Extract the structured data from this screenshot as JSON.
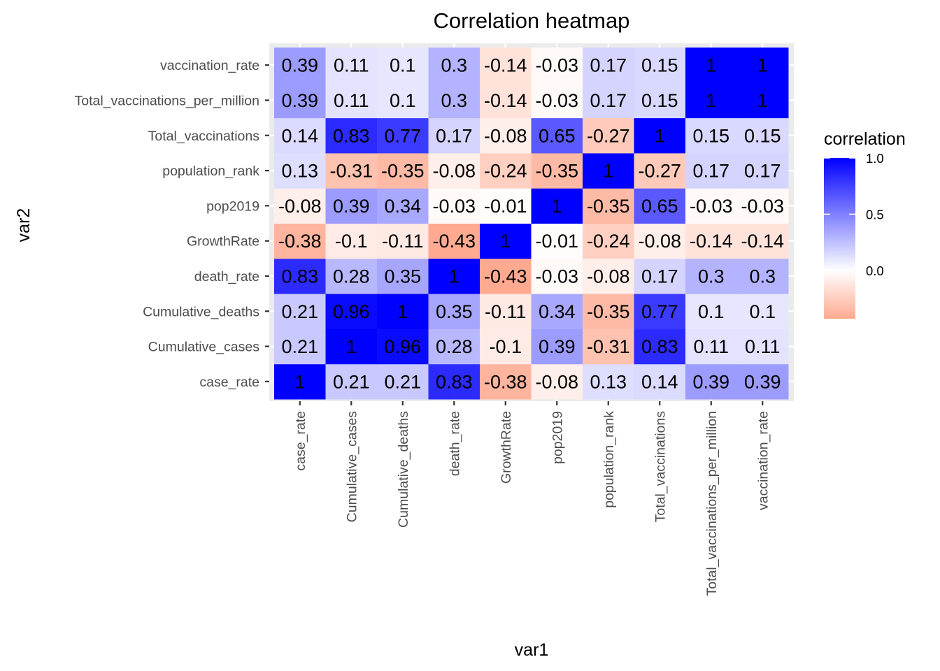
{
  "chart_data": {
    "type": "heatmap",
    "title": "Correlation heatmap",
    "xlabel": "var1",
    "ylabel": "var2",
    "categories": [
      "case_rate",
      "Cumulative_cases",
      "Cumulative_deaths",
      "death_rate",
      "GrowthRate",
      "pop2019",
      "population_rank",
      "Total_vaccinations",
      "Total_vaccinations_per_million",
      "vaccination_rate"
    ],
    "matrix": [
      [
        1,
        0.21,
        0.21,
        0.83,
        -0.38,
        -0.08,
        0.13,
        0.14,
        0.39,
        0.39
      ],
      [
        0.21,
        1,
        0.96,
        0.28,
        -0.1,
        0.39,
        -0.31,
        0.83,
        0.11,
        0.11
      ],
      [
        0.21,
        0.96,
        1,
        0.35,
        -0.11,
        0.34,
        -0.35,
        0.77,
        0.1,
        0.1
      ],
      [
        0.83,
        0.28,
        0.35,
        1,
        -0.43,
        -0.03,
        -0.08,
        0.17,
        0.3,
        0.3
      ],
      [
        -0.38,
        -0.1,
        -0.11,
        -0.43,
        1,
        -0.01,
        -0.24,
        -0.08,
        -0.14,
        -0.14
      ],
      [
        -0.08,
        0.39,
        0.34,
        -0.03,
        -0.01,
        1,
        -0.35,
        0.65,
        -0.03,
        -0.03
      ],
      [
        0.13,
        -0.31,
        -0.35,
        -0.08,
        -0.24,
        -0.35,
        1,
        -0.27,
        0.17,
        0.17
      ],
      [
        0.14,
        0.83,
        0.77,
        0.17,
        -0.08,
        0.65,
        -0.27,
        1,
        0.15,
        0.15
      ],
      [
        0.39,
        0.11,
        0.1,
        0.3,
        -0.14,
        -0.03,
        0.17,
        0.15,
        1,
        1
      ],
      [
        0.39,
        0.11,
        0.1,
        0.3,
        -0.14,
        -0.03,
        0.17,
        0.15,
        1,
        1
      ]
    ],
    "legend": {
      "title": "correlation",
      "ticks": [
        "1.0",
        "0.5",
        "0.0"
      ],
      "tick_values": [
        1.0,
        0.5,
        0.0
      ],
      "range": [
        -0.43,
        1.0
      ],
      "low_color": "#FFAA90",
      "mid_color": "#FFFFFF",
      "high_color": "#0000FF"
    },
    "panel_background": "#EBEBEB",
    "grid": true
  }
}
